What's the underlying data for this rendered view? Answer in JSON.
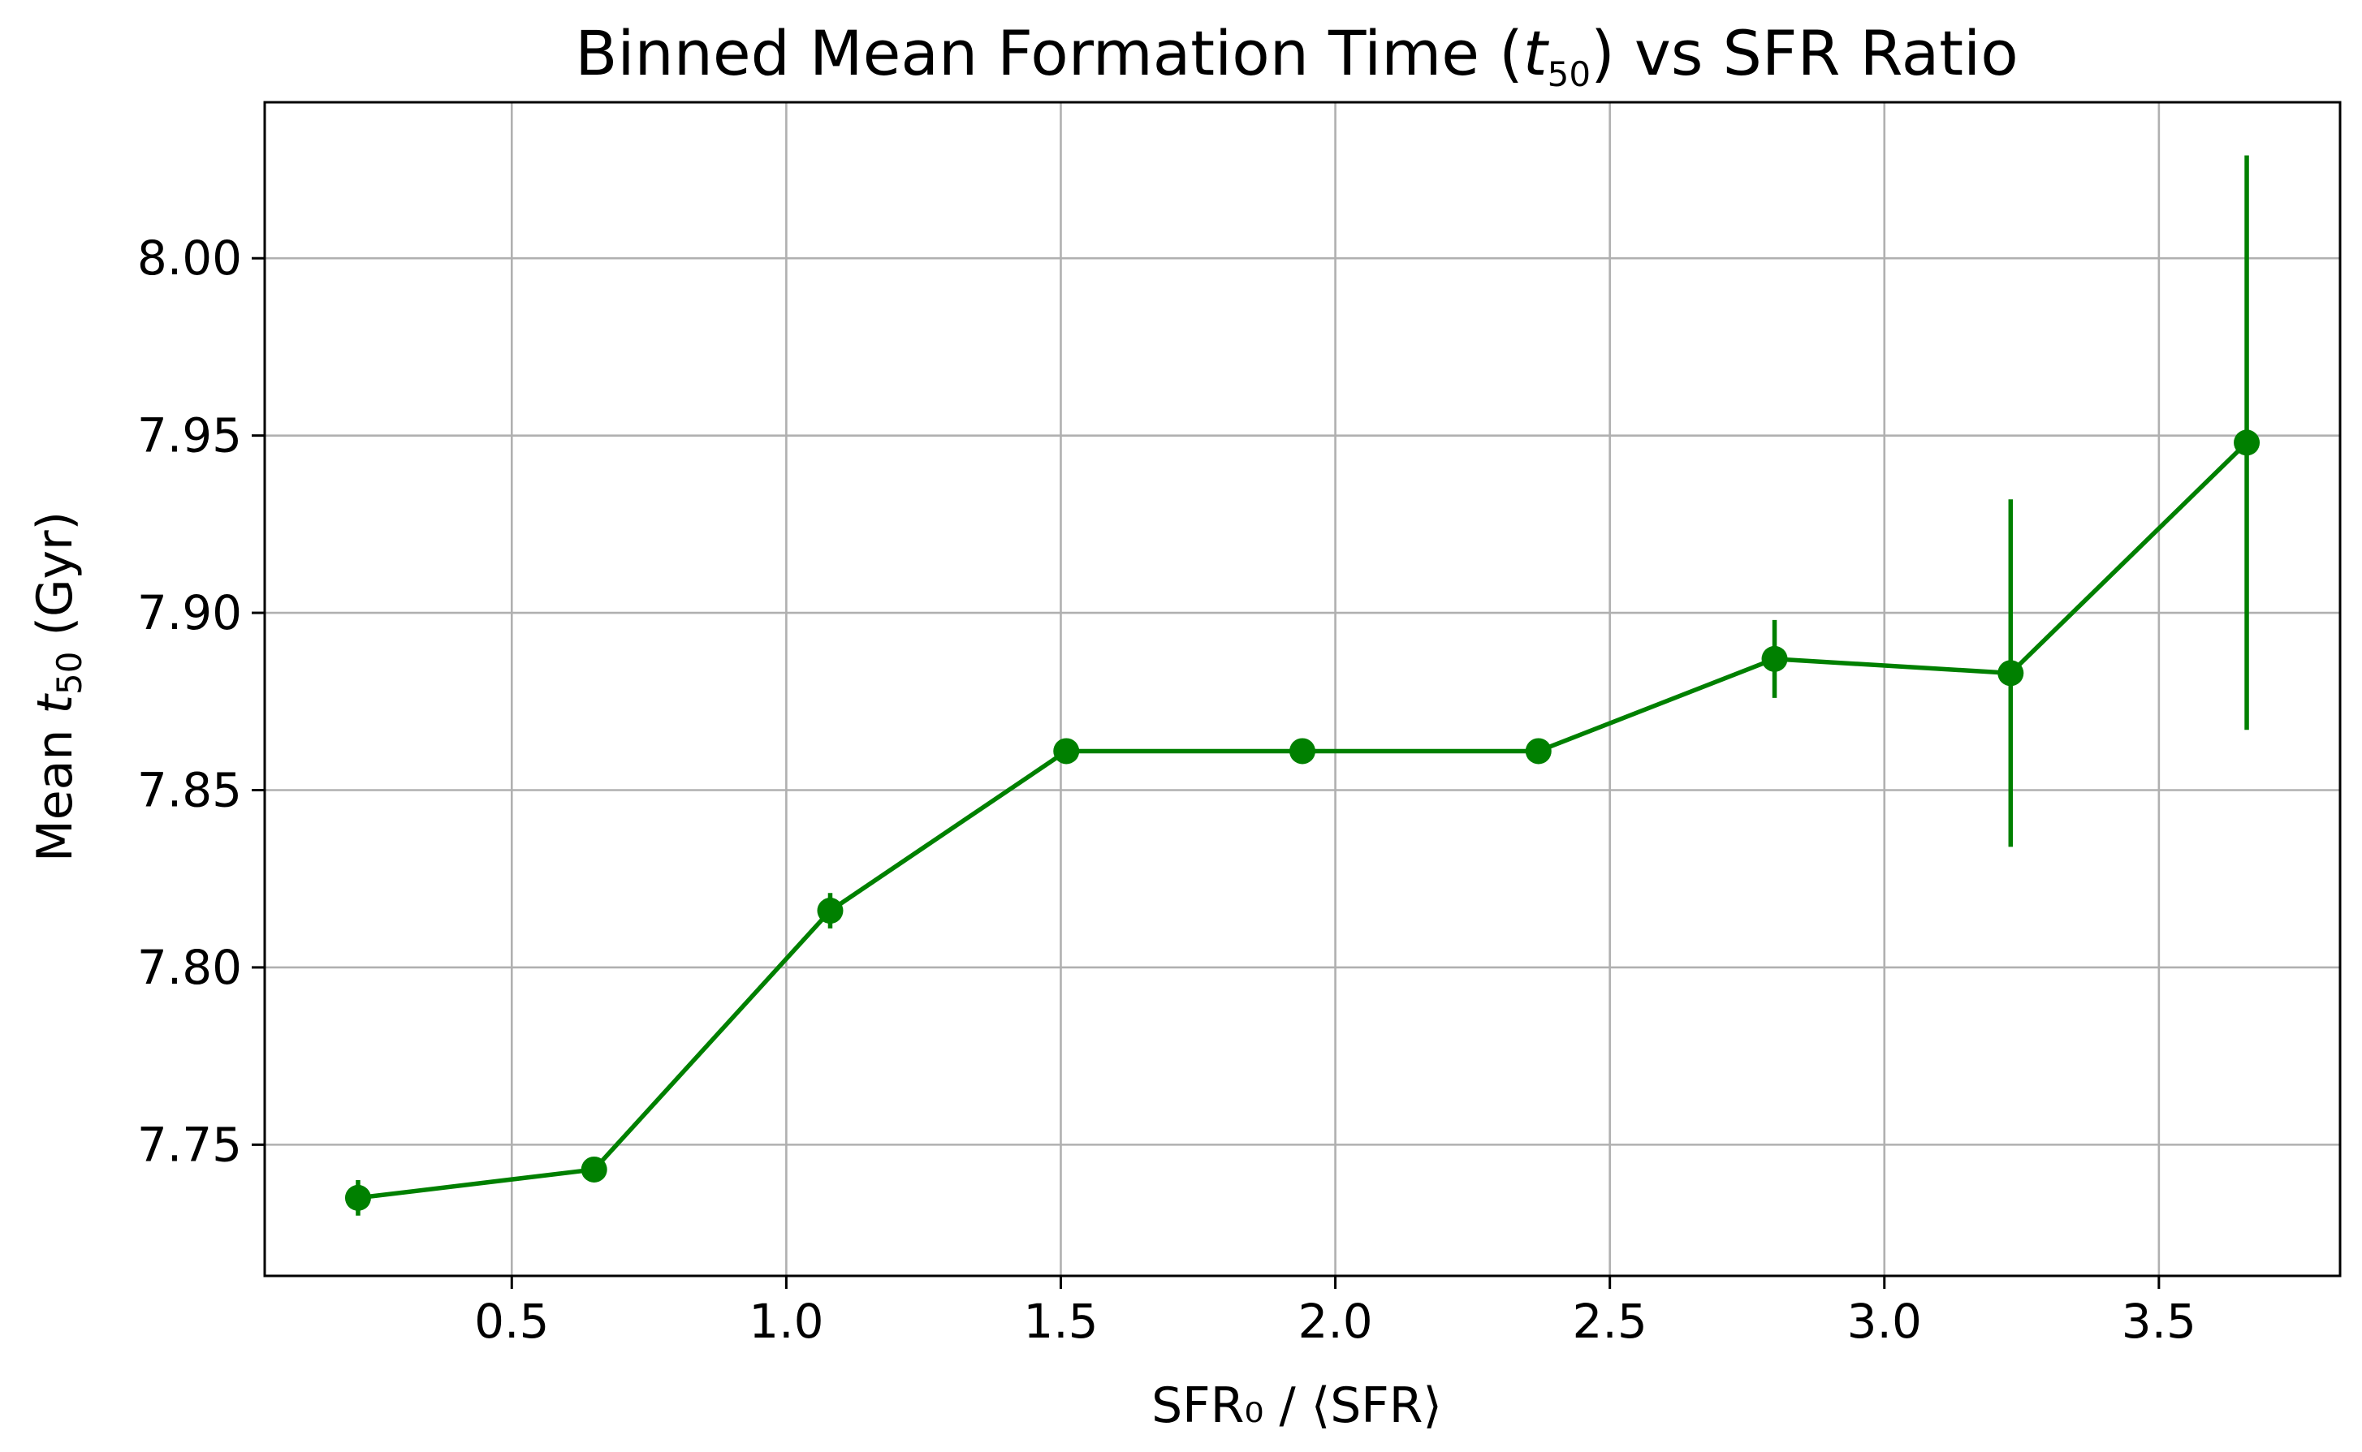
{
  "chart_data": {
    "type": "line",
    "title": {
      "prefix": "Binned Mean Formation Time (",
      "var": "t",
      "sub": "50",
      "suffix": ") vs SFR Ratio"
    },
    "xlabel": "SFR₀ / ⟨SFR⟩",
    "ylabel": {
      "prefix": "Mean ",
      "var": "t",
      "sub": "50",
      "suffix": " (Gyr)"
    },
    "xlim": [
      0.05,
      3.83
    ],
    "ylim": [
      7.713,
      8.044
    ],
    "xticks": [
      0.5,
      1.0,
      1.5,
      2.0,
      2.5,
      3.0,
      3.5
    ],
    "xtick_labels": [
      "0.5",
      "1.0",
      "1.5",
      "2.0",
      "2.5",
      "3.0",
      "3.5"
    ],
    "yticks": [
      7.75,
      7.8,
      7.85,
      7.9,
      7.95,
      8.0
    ],
    "ytick_labels": [
      "7.75",
      "7.80",
      "7.85",
      "7.90",
      "7.95",
      "8.00"
    ],
    "grid": true,
    "series": [
      {
        "color": "#008000",
        "x": [
          0.22,
          0.65,
          1.08,
          1.51,
          1.94,
          2.37,
          2.8,
          3.23,
          3.66
        ],
        "y": [
          7.735,
          7.743,
          7.816,
          7.861,
          7.861,
          7.861,
          7.887,
          7.883,
          7.948
        ],
        "yerr": [
          0.005,
          0.002,
          0.005,
          0.001,
          0.001,
          0.001,
          0.011,
          0.049,
          0.081
        ]
      }
    ]
  }
}
